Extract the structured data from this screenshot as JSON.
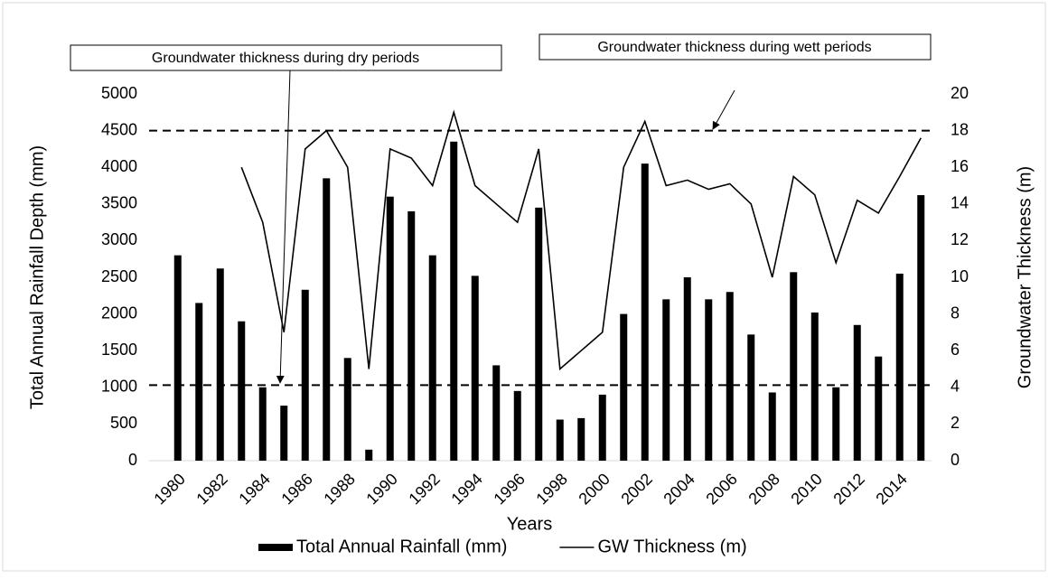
{
  "chart_data": {
    "type": "bar",
    "x_label": "Years",
    "y_label": "Total Annual Rainfall Depth (mm)",
    "y2_label": "Groundwater Thickness (m)",
    "categories": [
      "1980",
      null,
      "1982",
      null,
      "1984",
      null,
      "1986",
      null,
      "1988",
      null,
      "1990",
      null,
      "1992",
      null,
      "1994",
      null,
      "1996",
      null,
      "1998",
      null,
      "2000",
      null,
      "2002",
      null,
      "2004",
      null,
      "2006",
      null,
      "2008",
      null,
      "2010",
      null,
      "2012",
      null,
      "2014",
      null
    ],
    "series": [
      {
        "name": "Total Annual Rainfall (mm)",
        "type": "bar",
        "axis": "y",
        "color": "#000000",
        "values": [
          2800,
          2150,
          2620,
          1900,
          1000,
          750,
          2330,
          3850,
          1400,
          150,
          3600,
          3400,
          2800,
          4350,
          2520,
          1300,
          950,
          3450,
          560,
          580,
          900,
          2000,
          4050,
          2200,
          2500,
          2200,
          2300,
          1720,
          930,
          2570,
          2020,
          1000,
          1850,
          1420,
          2550,
          3620
        ]
      },
      {
        "name": "GW Thickness (m)",
        "type": "line",
        "axis": "y2",
        "color": "#000000",
        "values": [
          null,
          null,
          null,
          16,
          13,
          7,
          17,
          18,
          16,
          5,
          17,
          16.5,
          15,
          19,
          15,
          14,
          13,
          17,
          5,
          6,
          7,
          16,
          18.5,
          15,
          15.3,
          14.8,
          15.1,
          14,
          10,
          15.5,
          14.5,
          10.8,
          14.2,
          13.5,
          15.5,
          17.6
        ]
      }
    ],
    "ylim": [
      0,
      5000
    ],
    "yticks": [
      0,
      500,
      1000,
      1500,
      2000,
      2500,
      3000,
      3500,
      4000,
      4500,
      5000
    ],
    "y2lim": [
      0,
      20
    ],
    "y2ticks": [
      0,
      2,
      4,
      6,
      8,
      10,
      12,
      14,
      16,
      18,
      20
    ],
    "reference_lines": [
      {
        "value": 4500,
        "axis": "y",
        "style": "dashed"
      },
      {
        "value": 1030,
        "axis": "y",
        "style": "dashed"
      }
    ],
    "annotations": [
      "Groundwater thickness during dry periods",
      "Groundwater thickness during wett periods"
    ],
    "legend": "bottom",
    "grid": false
  }
}
